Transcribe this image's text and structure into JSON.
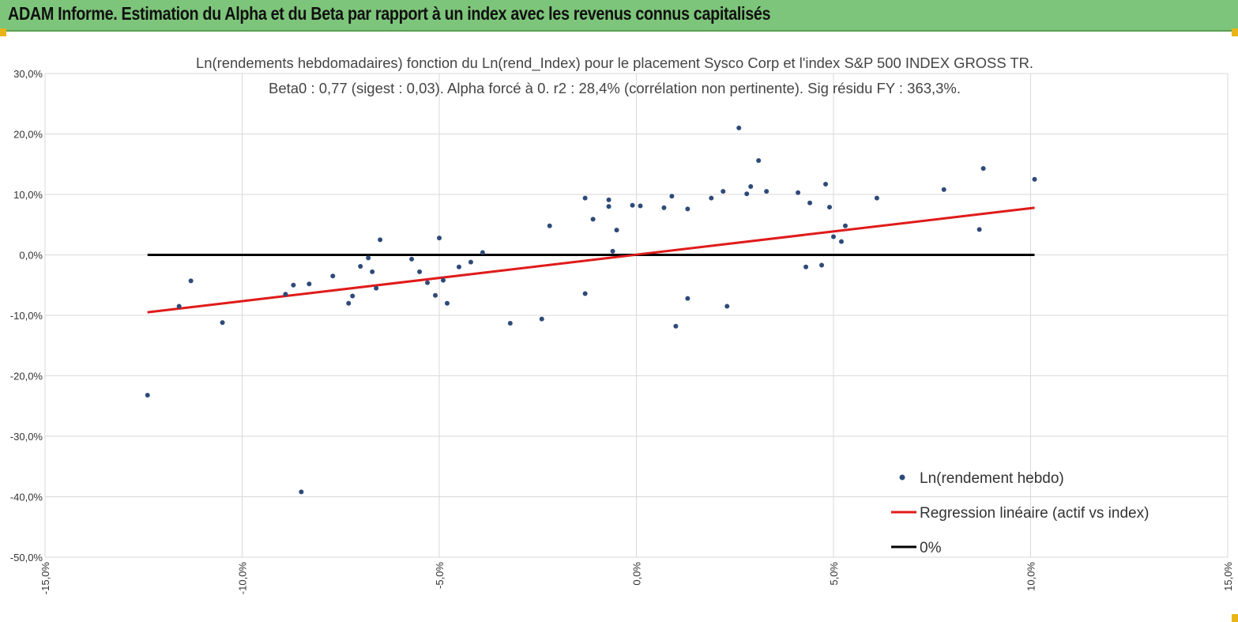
{
  "header": {
    "title": "ADAM Informe. Estimation du Alpha et du Beta par rapport à un index avec les revenus connus capitalisés"
  },
  "colors": {
    "header_bg": "#7dc57a",
    "accent": "#e8b417",
    "points": "#2e4a78",
    "regression": "#e01b1b",
    "zero_line": "#000000",
    "grid": "#d9d9d9"
  },
  "chart_data": {
    "type": "scatter",
    "title_line1": "Ln(rendements hebdomadaires) fonction du Ln(rend_Index) pour le placement Sysco Corp et l'index S&P 500 INDEX GROSS TR.",
    "title_line2": "Beta0 : 0,77 (sigest : 0,03). Alpha forcé à 0. r2 : 28,4% (corrélation non pertinente). Sig résidu FY : 363,3%.",
    "x_ticks": [
      "-15,0%",
      "-10,0%",
      "-5,0%",
      "0,0%",
      "5,0%",
      "10,0%",
      "15,0%"
    ],
    "y_ticks": [
      "30,0%",
      "20,0%",
      "10,0%",
      "0,0%",
      "-10,0%",
      "-20,0%",
      "-30,0%",
      "-40,0%",
      "-50,0%"
    ],
    "xlim": [
      -15,
      15
    ],
    "ylim": [
      -50,
      30
    ],
    "grid": true,
    "legend_position": "bottom-right",
    "series": [
      {
        "name": "Ln(rendement hebdo)",
        "kind": "points",
        "points": [
          [
            -12.4,
            -23.2
          ],
          [
            -11.6,
            -8.5
          ],
          [
            -11.3,
            -4.3
          ],
          [
            -10.5,
            -11.2
          ],
          [
            -8.5,
            -39.2
          ],
          [
            -8.9,
            -6.5
          ],
          [
            -8.7,
            -5.0
          ],
          [
            -8.3,
            -4.8
          ],
          [
            -7.7,
            -3.5
          ],
          [
            -7.3,
            -8.0
          ],
          [
            -7.2,
            -6.8
          ],
          [
            -7.0,
            -1.9
          ],
          [
            -6.8,
            -0.5
          ],
          [
            -6.7,
            -2.8
          ],
          [
            -6.6,
            -5.5
          ],
          [
            -6.5,
            2.5
          ],
          [
            -5.7,
            -0.7
          ],
          [
            -5.5,
            -2.8
          ],
          [
            -5.3,
            -4.6
          ],
          [
            -5.1,
            -6.7
          ],
          [
            -4.9,
            -4.2
          ],
          [
            -5.0,
            2.8
          ],
          [
            -4.8,
            -8.0
          ],
          [
            -4.5,
            -2.0
          ],
          [
            -4.2,
            -1.2
          ],
          [
            -3.9,
            0.4
          ],
          [
            -3.2,
            -11.3
          ],
          [
            -2.4,
            -10.6
          ],
          [
            -1.3,
            -6.4
          ],
          [
            -2.2,
            4.8
          ],
          [
            -1.3,
            9.4
          ],
          [
            -0.7,
            8.0
          ],
          [
            -0.7,
            9.1
          ],
          [
            -0.6,
            0.6
          ],
          [
            0.1,
            8.1
          ],
          [
            1.0,
            -11.8
          ],
          [
            1.3,
            -7.2
          ],
          [
            2.3,
            -8.5
          ],
          [
            2.6,
            21.0
          ],
          [
            3.1,
            15.6
          ],
          [
            2.8,
            10.1
          ],
          [
            2.9,
            11.3
          ],
          [
            3.3,
            10.5
          ],
          [
            4.4,
            8.6
          ],
          [
            4.1,
            10.3
          ],
          [
            4.8,
            11.7
          ],
          [
            4.9,
            7.9
          ],
          [
            5.0,
            3.0
          ],
          [
            5.3,
            4.8
          ],
          [
            5.2,
            2.2
          ],
          [
            4.3,
            -2.0
          ],
          [
            4.7,
            -1.7
          ],
          [
            6.1,
            9.4
          ],
          [
            7.8,
            10.8
          ],
          [
            8.7,
            4.2
          ],
          [
            8.8,
            14.3
          ],
          [
            10.1,
            12.5
          ],
          [
            1.9,
            9.4
          ],
          [
            2.2,
            10.5
          ],
          [
            0.7,
            7.8
          ],
          [
            -0.1,
            8.2
          ],
          [
            -1.1,
            5.9
          ],
          [
            -0.5,
            4.1
          ],
          [
            0.9,
            9.7
          ],
          [
            1.3,
            7.6
          ]
        ]
      },
      {
        "name": "Regression linéaire (actif vs index)",
        "kind": "line",
        "points": [
          [
            -12.4,
            -9.5
          ],
          [
            10.1,
            7.8
          ]
        ]
      },
      {
        "name": "0%",
        "kind": "line",
        "points": [
          [
            -12.4,
            0.0
          ],
          [
            10.1,
            0.0
          ]
        ]
      }
    ]
  }
}
